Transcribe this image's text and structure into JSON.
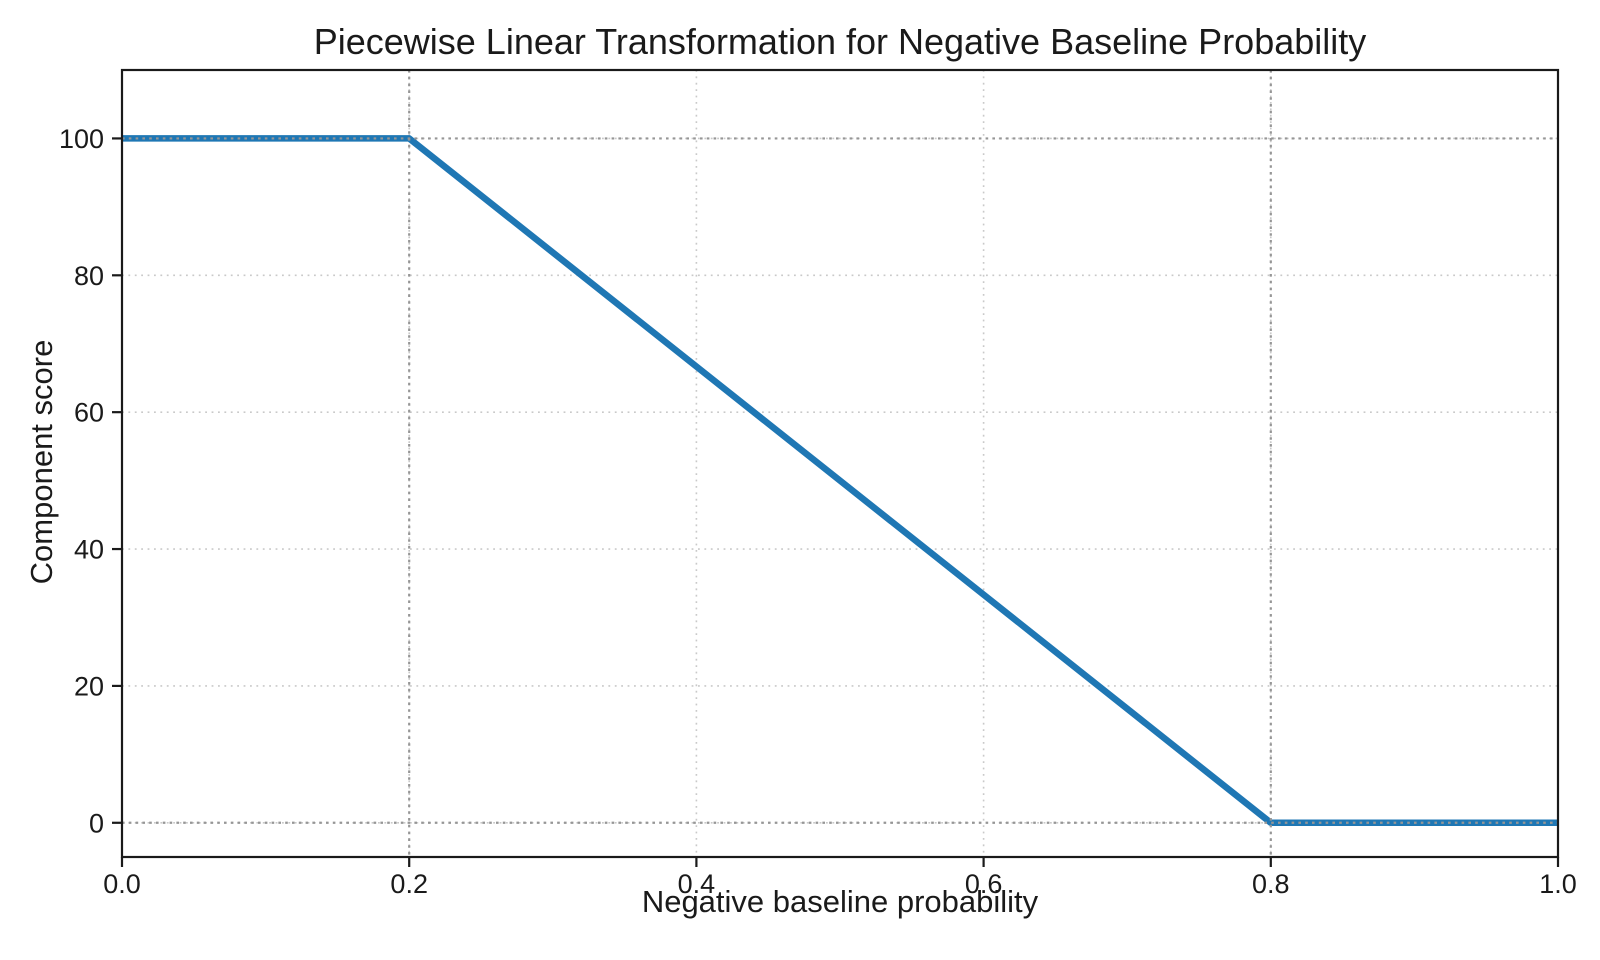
{
  "chart_data": {
    "type": "line",
    "title": "Piecewise Linear Transformation for Negative Baseline Probability",
    "xlabel": "Negative baseline probability",
    "ylabel": "Component score",
    "xlim": [
      0.0,
      1.0
    ],
    "ylim": [
      -5,
      110
    ],
    "xtick_values": [
      0.0,
      0.2,
      0.4,
      0.6,
      0.8,
      1.0
    ],
    "xtick_labels": [
      "0.0",
      "0.2",
      "0.4",
      "0.6",
      "0.8",
      "1.0"
    ],
    "ytick_values": [
      0,
      20,
      40,
      60,
      80,
      100
    ],
    "ytick_labels": [
      "0",
      "20",
      "40",
      "60",
      "80",
      "100"
    ],
    "series": [
      {
        "points": [
          [
            0.0,
            100
          ],
          [
            0.2,
            100
          ],
          [
            0.8,
            0
          ],
          [
            1.0,
            0
          ]
        ],
        "color": "#1f77b4",
        "linewidth": 6.5
      }
    ],
    "grid": {
      "visible": true,
      "linestyle": "dotted",
      "color": "#c9c9c9"
    },
    "reference_lines": {
      "vertical_x": [
        0.2,
        0.8
      ],
      "horizontal_y": [
        0,
        100
      ],
      "linestyle": "dotted",
      "color": "#969696"
    },
    "axis_color": "#1a1a1a",
    "text_color": "#1a1a1a",
    "background_color": "#ffffff",
    "legend": "none"
  }
}
